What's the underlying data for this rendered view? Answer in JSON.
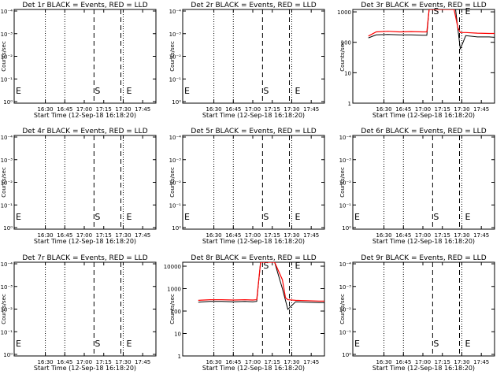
{
  "start_label": "Start Time (12-Sep-18 16:18:20)",
  "ylabel": "Counts/sec",
  "marker_s": "S",
  "marker_e": "E",
  "x_ticks": [
    "16:30",
    "16:45",
    "17:00",
    "17:15",
    "17:30",
    "17:45"
  ],
  "y_ticks_a": [
    "10⁰",
    "10⁻¹",
    "10⁻²",
    "10⁻³",
    "10⁻⁴"
  ],
  "y_ticks_b": [
    "1",
    "10",
    "100",
    "1000"
  ],
  "y_ticks_c": [
    "1",
    "10",
    "100",
    "1000",
    "10000"
  ],
  "colors": {
    "events": "#000000",
    "lld": "#ff0000"
  },
  "chart_data": [
    {
      "type": "line",
      "title": "Det 1r BLACK = Events, RED = LLD",
      "xlabel": "Start Time (12-Sep-18 16:18:20)",
      "ylabel": "Counts/sec",
      "log_y": true,
      "ylim": [
        1,
        1.8
      ],
      "series": []
    },
    {
      "type": "line",
      "title": "Det 2r BLACK = Events, RED = LLD",
      "xlabel": "Start Time (12-Sep-18 16:18:20)",
      "ylabel": "Counts/sec",
      "log_y": true,
      "ylim": [
        1,
        1.8
      ],
      "series": []
    },
    {
      "type": "line",
      "title": "Det 3r BLACK = Events, RED = LLD",
      "xlabel": "Start Time (12-Sep-18 16:18:20)",
      "ylabel": "Counts/sec",
      "log_y": true,
      "ylim": [
        1,
        1200
      ],
      "series": [
        {
          "name": "Events",
          "x": [
            16.3,
            16.4,
            16.55,
            16.7,
            16.85,
            17.0,
            17.05,
            17.08,
            17.35,
            17.42,
            17.48,
            17.55,
            17.7,
            17.85,
            17.95
          ],
          "y": [
            140,
            175,
            180,
            175,
            175,
            170,
            170,
            1200,
            1200,
            1200,
            60,
            165,
            150,
            150,
            145
          ]
        },
        {
          "name": "LLD",
          "x": [
            16.3,
            16.4,
            16.55,
            16.7,
            16.85,
            17.0,
            17.05,
            17.08,
            17.35,
            17.4,
            17.45,
            17.48,
            17.55,
            17.7,
            17.85,
            17.95
          ],
          "y": [
            160,
            220,
            230,
            220,
            225,
            220,
            220,
            1200,
            1200,
            1200,
            300,
            210,
            210,
            200,
            195,
            195
          ]
        }
      ]
    },
    {
      "type": "line",
      "title": "Det 4r BLACK = Events, RED = LLD",
      "xlabel": "Start Time (12-Sep-18 16:18:20)",
      "ylabel": "Counts/sec",
      "log_y": true,
      "ylim": [
        1,
        1.8
      ],
      "series": []
    },
    {
      "type": "line",
      "title": "Det 5r BLACK = Events, RED = LLD",
      "xlabel": "Start Time (12-Sep-18 16:18:20)",
      "ylabel": "Counts/sec",
      "log_y": true,
      "ylim": [
        1,
        1.8
      ],
      "series": []
    },
    {
      "type": "line",
      "title": "Det 6r BLACK = Events, RED = LLD",
      "xlabel": "Start Time (12-Sep-18 16:18:20)",
      "ylabel": "Counts/sec",
      "log_y": true,
      "ylim": [
        1,
        1.8
      ],
      "series": []
    },
    {
      "type": "line",
      "title": "Det 7r BLACK = Events, RED = LLD",
      "xlabel": "Start Time (12-Sep-18 16:18:20)",
      "ylabel": "Counts/sec",
      "log_y": true,
      "ylim": [
        1,
        1.8
      ],
      "series": []
    },
    {
      "type": "line",
      "title": "Det 8r BLACK = Events, RED = LLD",
      "xlabel": "Start Time (12-Sep-18 16:18:20)",
      "ylabel": "Counts/sec",
      "log_y": true,
      "ylim": [
        1,
        15000
      ],
      "series": [
        {
          "name": "Events",
          "x": [
            16.3,
            16.45,
            16.6,
            16.75,
            16.9,
            17.0,
            17.05,
            17.1,
            17.2,
            17.28,
            17.38,
            17.42,
            17.45,
            17.55,
            17.7,
            17.85,
            17.95
          ],
          "y": [
            250,
            270,
            270,
            260,
            270,
            260,
            270,
            15000,
            15000,
            15000,
            1000,
            300,
            120,
            260,
            250,
            240,
            240
          ]
        },
        {
          "name": "LLD",
          "x": [
            16.3,
            16.45,
            16.6,
            16.75,
            16.9,
            17.0,
            17.05,
            17.1,
            17.2,
            17.28,
            17.38,
            17.42,
            17.45,
            17.55,
            17.7,
            17.85,
            17.95
          ],
          "y": [
            300,
            320,
            320,
            310,
            320,
            310,
            320,
            15000,
            15000,
            15000,
            2500,
            400,
            320,
            300,
            290,
            280,
            280
          ]
        }
      ]
    },
    {
      "type": "line",
      "title": "Det 9r BLACK = Events, RED = LLD",
      "xlabel": "Start Time (12-Sep-18 16:18:20)",
      "ylabel": "Counts/sec",
      "log_y": true,
      "ylim": [
        1,
        1.8
      ],
      "series": []
    }
  ]
}
